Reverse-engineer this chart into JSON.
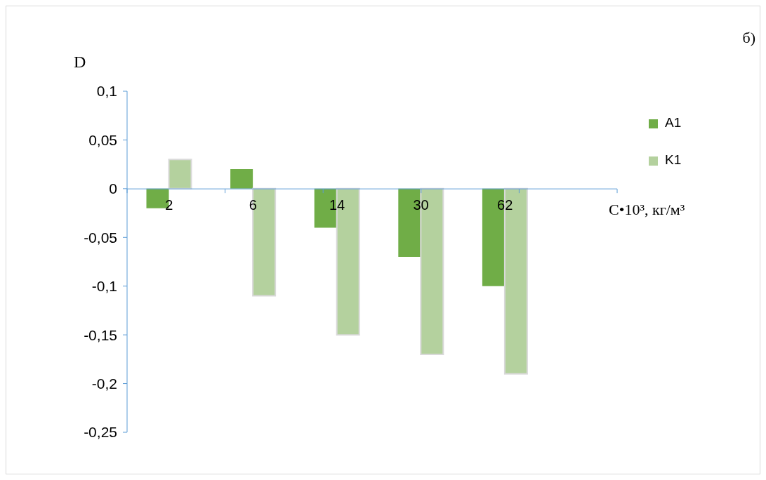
{
  "chart_data": {
    "type": "bar",
    "ylabel": "D",
    "xlabel": "C•10³, кг/м³",
    "annotations": [
      "б)"
    ],
    "categories": [
      "2",
      "6",
      "14",
      "30",
      "62"
    ],
    "series": [
      {
        "name": "A1",
        "color": "#70ad47",
        "values": [
          -0.02,
          0.02,
          -0.04,
          -0.07,
          -0.1
        ]
      },
      {
        "name": "K1",
        "color": "#b4d19e",
        "values": [
          0.03,
          -0.11,
          -0.15,
          -0.17,
          -0.19
        ]
      }
    ],
    "ylim": [
      -0.25,
      0.1
    ],
    "yticks": [
      {
        "value": -0.25,
        "label": "-0,25"
      },
      {
        "value": -0.2,
        "label": "-0,2"
      },
      {
        "value": -0.15,
        "label": "-0,15"
      },
      {
        "value": -0.1,
        "label": "-0,1"
      },
      {
        "value": -0.05,
        "label": "-0,05"
      },
      {
        "value": 0,
        "label": "0"
      },
      {
        "value": 0.05,
        "label": "0,05"
      },
      {
        "value": 0.1,
        "label": "0,1"
      }
    ],
    "grid": false,
    "legend": "top right"
  }
}
